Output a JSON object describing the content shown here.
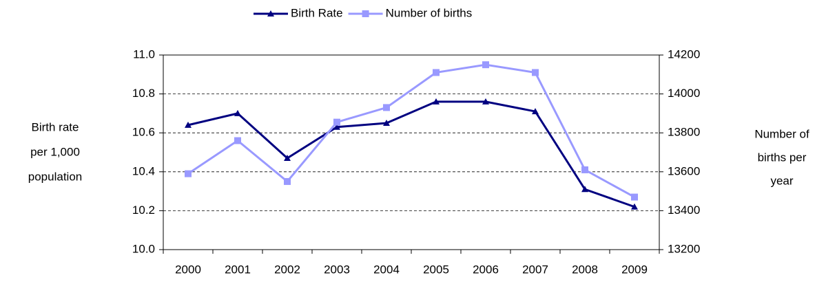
{
  "chart_data": {
    "type": "line",
    "categories": [
      "2000",
      "2001",
      "2002",
      "2003",
      "2004",
      "2005",
      "2006",
      "2007",
      "2008",
      "2009"
    ],
    "series": [
      {
        "name": "Birth Rate",
        "color": "#000080",
        "marker": "triangle",
        "values": [
          10.64,
          10.7,
          10.47,
          10.63,
          10.65,
          10.76,
          10.76,
          10.71,
          10.31,
          10.22
        ]
      },
      {
        "name": "Number of births",
        "color": "#9999ff",
        "marker": "square",
        "axis": "y2",
        "values": [
          13590,
          13760,
          13550,
          13855,
          13930,
          14110,
          14150,
          14110,
          13610,
          13470
        ]
      }
    ],
    "ylabel": [
      "Birth rate",
      "per 1,000",
      "population"
    ],
    "y2label": [
      "Number of",
      "births per",
      "year"
    ],
    "ylim": [
      10.0,
      11.0
    ],
    "yticks": [
      {
        "value": 10.0,
        "label": "10.0"
      },
      10.2,
      10.4,
      10.6,
      10.8,
      {
        "value": 11.0,
        "label": "11.0"
      }
    ],
    "y2lim": [
      13200,
      14200
    ],
    "y2ticks": [
      13200,
      13400,
      13600,
      13800,
      14000,
      14200
    ],
    "grid": true,
    "legend": "top"
  }
}
